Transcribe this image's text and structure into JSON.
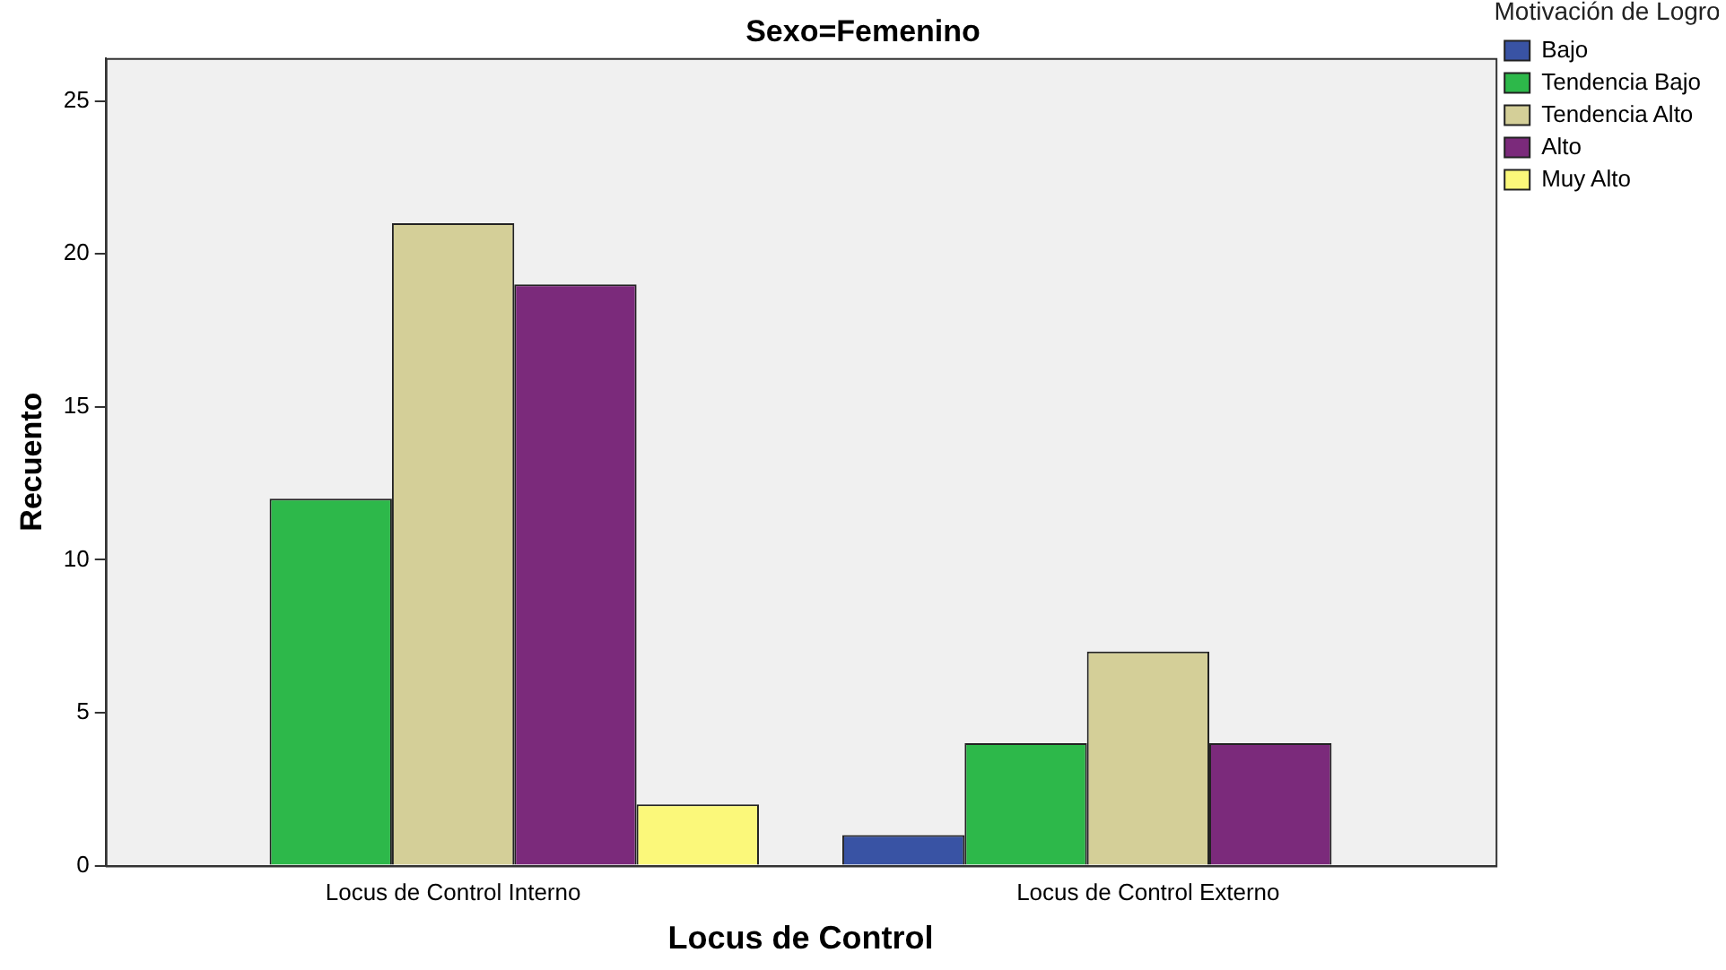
{
  "chart_data": {
    "type": "bar",
    "title": "Sexo=Femenino",
    "xlabel": "Locus de Control",
    "ylabel": "Recuento",
    "legend_title": "Motivación de Logro",
    "legend": "top right",
    "grid": false,
    "categories": [
      "Locus de Control Interno",
      "Locus de Control Externo"
    ],
    "ylim": [
      0,
      26.4
    ],
    "yticks": [
      0,
      5,
      10,
      15,
      20,
      25
    ],
    "series": [
      {
        "name": "Bajo",
        "color": "#3953a4",
        "values": [
          0,
          1
        ]
      },
      {
        "name": "Tendencia Bajo",
        "color": "#2db84a",
        "values": [
          12,
          4
        ]
      },
      {
        "name": "Tendencia Alto",
        "color": "#d4cf98",
        "values": [
          21,
          7
        ]
      },
      {
        "name": "Alto",
        "color": "#7b2a7b",
        "values": [
          19,
          4
        ]
      },
      {
        "name": "Muy Alto",
        "color": "#fbf87a",
        "values": [
          2,
          0
        ]
      }
    ]
  }
}
